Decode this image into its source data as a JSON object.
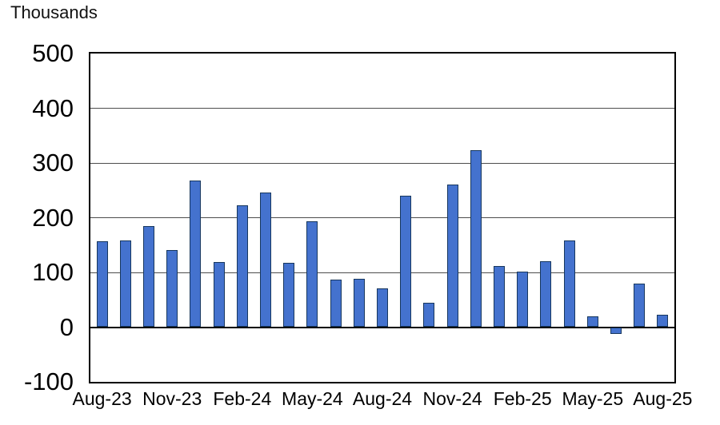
{
  "header": {
    "title": "Thousands"
  },
  "chart_data": {
    "type": "bar",
    "title": "Thousands",
    "y_axis_unit": "Thousands",
    "categories": [
      "Aug-23",
      "Sep-23",
      "Oct-23",
      "Nov-23",
      "Dec-23",
      "Jan-24",
      "Feb-24",
      "Mar-24",
      "Apr-24",
      "May-24",
      "Jun-24",
      "Jul-24",
      "Aug-24",
      "Sep-24",
      "Oct-24",
      "Nov-24",
      "Dec-24",
      "Jan-25",
      "Feb-25",
      "Mar-25",
      "Apr-25",
      "May-25",
      "Jun-25",
      "Jul-25",
      "Aug-25"
    ],
    "values": [
      157,
      158,
      184,
      141,
      268,
      119,
      222,
      246,
      118,
      193,
      87,
      88,
      71,
      240,
      44,
      261,
      323,
      111,
      102,
      120,
      158,
      19,
      -13,
      79,
      22
    ],
    "x_tick_labels": [
      "Aug-23",
      "Nov-23",
      "Feb-24",
      "May-24",
      "Aug-24",
      "Nov-24",
      "Feb-25",
      "May-25",
      "Aug-25"
    ],
    "x_tick_indices": [
      0,
      3,
      6,
      9,
      12,
      15,
      18,
      21,
      24
    ],
    "y_ticks": [
      500,
      400,
      300,
      200,
      100,
      0,
      -100
    ],
    "ylim": [
      -100,
      500
    ],
    "grid": true,
    "legend": false,
    "bar_fill": "#4472ce",
    "bar_border": "#17375e",
    "axis_color": "#000000",
    "gridline_color": "#4d4d4d"
  }
}
